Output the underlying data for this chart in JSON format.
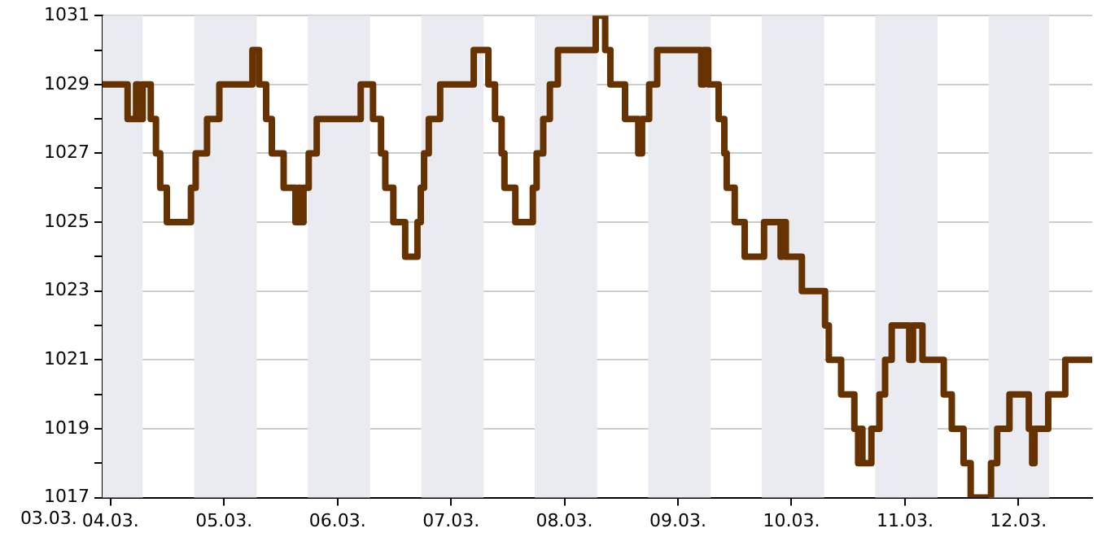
{
  "chart_data": {
    "type": "step",
    "line_style": "solid",
    "marker": "none",
    "legend": false,
    "grid": true,
    "xlim": [
      "--03-03T22:18",
      "--03-12T15:36"
    ],
    "annotations": [
      "03.03."
    ],
    "xticks": [
      {
        "value": "--03-04",
        "label": "04.03."
      },
      {
        "value": "--03-05",
        "label": "05.03."
      },
      {
        "value": "--03-06",
        "label": "06.03."
      },
      {
        "value": "--03-07",
        "label": "07.03."
      },
      {
        "value": "--03-08",
        "label": "08.03."
      },
      {
        "value": "--03-09",
        "label": "09.03."
      },
      {
        "value": "--03-10",
        "label": "10.03."
      },
      {
        "value": "--03-11",
        "label": "11.03."
      },
      {
        "value": "--03-12",
        "label": "12.03."
      }
    ],
    "ylim": [
      1017,
      1031
    ],
    "yticks": [
      1017,
      {
        "value": 1018,
        "label": null
      },
      1019,
      {
        "value": 1020,
        "label": null
      },
      1021,
      {
        "value": 1022,
        "label": null
      },
      1023,
      {
        "value": 1024,
        "label": null
      },
      1025,
      {
        "value": 1026,
        "label": null
      },
      1027,
      {
        "value": 1028,
        "label": null
      },
      1029,
      {
        "value": 1030,
        "label": null
      },
      1031
    ],
    "bands": [
      {
        "axis": "x",
        "from": "--03-03T22:18",
        "to": "--03-04T06:48",
        "color": "#eaebf1"
      },
      {
        "axis": "x",
        "from": "--03-04T17:42",
        "to": "--03-05T06:54",
        "color": "#eaebf1"
      },
      {
        "axis": "x",
        "from": "--03-05T17:42",
        "to": "--03-06T06:54",
        "color": "#eaebf1"
      },
      {
        "axis": "x",
        "from": "--03-06T17:42",
        "to": "--03-07T06:54",
        "color": "#eaebf1"
      },
      {
        "axis": "x",
        "from": "--03-07T17:42",
        "to": "--03-08T06:54",
        "color": "#eaebf1"
      },
      {
        "axis": "x",
        "from": "--03-08T17:42",
        "to": "--03-09T06:54",
        "color": "#eaebf1"
      },
      {
        "axis": "x",
        "from": "--03-09T17:42",
        "to": "--03-10T06:54",
        "color": "#eaebf1"
      },
      {
        "axis": "x",
        "from": "--03-10T17:42",
        "to": "--03-11T06:54",
        "color": "#eaebf1"
      },
      {
        "axis": "x",
        "from": "--03-11T17:42",
        "to": "--03-12T06:30",
        "color": "#eaebf1"
      }
    ],
    "series": [
      {
        "color": "#663300",
        "x": [
          "--03-03T22:18",
          "--03-04T03:36",
          "--03-04T05:24",
          "--03-04T06:00",
          "--03-04T06:48",
          "--03-04T08:30",
          "--03-04T09:36",
          "--03-04T10:30",
          "--03-04T11:54",
          "--03-04T17:00",
          "--03-04T18:00",
          "--03-04T20:24",
          "--03-04T23:00",
          "--03-05T06:00",
          "--03-05T07:24",
          "--03-05T08:54",
          "--03-05T10:06",
          "--03-05T12:36",
          "--03-05T15:06",
          "--03-05T15:48",
          "--03-05T16:06",
          "--03-05T16:48",
          "--03-05T17:54",
          "--03-05T19:36",
          "--03-06T04:54",
          "--03-06T07:30",
          "--03-06T09:12",
          "--03-06T10:06",
          "--03-06T11:48",
          "--03-06T14:18",
          "--03-06T16:54",
          "--03-06T17:36",
          "--03-06T18:18",
          "--03-06T19:18",
          "--03-06T21:42",
          "--03-07T04:48",
          "--03-07T07:54",
          "--03-07T09:18",
          "--03-07T10:42",
          "--03-07T11:18",
          "--03-07T13:36",
          "--03-07T17:18",
          "--03-07T18:06",
          "--03-07T19:30",
          "--03-07T20:54",
          "--03-07T22:36",
          "--03-08T06:36",
          "--03-08T08:36",
          "--03-08T09:42",
          "--03-08T12:48",
          "--03-08T15:36",
          "--03-08T16:24",
          "--03-08T17:54",
          "--03-08T19:36",
          "--03-09T04:54",
          "--03-09T05:30",
          "--03-09T06:24",
          "--03-09T08:36",
          "--03-09T09:48",
          "--03-09T10:18",
          "--03-09T12:00",
          "--03-09T14:06",
          "--03-09T18:12",
          "--03-09T21:42",
          "--03-09T22:06",
          "--03-09T22:48",
          "--03-10T02:12",
          "--03-10T07:06",
          "--03-10T07:54",
          "--03-10T10:30",
          "--03-10T13:18",
          "--03-10T14:06",
          "--03-10T14:42",
          "--03-10T15:00",
          "--03-10T16:54",
          "--03-10T18:36",
          "--03-10T19:48",
          "--03-10T21:12",
          "--03-11T00:54",
          "--03-11T01:42",
          "--03-11T03:42",
          "--03-11T08:12",
          "--03-11T09:54",
          "--03-11T12:24",
          "--03-11T13:54",
          "--03-11T18:12",
          "--03-11T19:30",
          "--03-11T22:06",
          "--03-12T02:12",
          "--03-12T02:54",
          "--03-12T03:24",
          "--03-12T06:18",
          "--03-12T09:54",
          "--03-12T15:36"
        ],
        "values": [
          1029,
          1028,
          1029,
          1028,
          1029,
          1028,
          1027,
          1026,
          1025,
          1026,
          1027,
          1028,
          1029,
          1030,
          1029,
          1028,
          1027,
          1026,
          1025,
          1026,
          1025,
          1026,
          1027,
          1028,
          1029,
          1028,
          1027,
          1026,
          1025,
          1024,
          1025,
          1026,
          1027,
          1028,
          1029,
          1030,
          1029,
          1028,
          1027,
          1026,
          1025,
          1026,
          1027,
          1028,
          1029,
          1030,
          1031,
          1030,
          1029,
          1028,
          1027,
          1028,
          1029,
          1030,
          1029,
          1030,
          1029,
          1028,
          1027,
          1026,
          1025,
          1024,
          1025,
          1024,
          1025,
          1024,
          1023,
          1022,
          1021,
          1020,
          1019,
          1018,
          1019,
          1018,
          1019,
          1020,
          1021,
          1022,
          1021,
          1022,
          1021,
          1020,
          1019,
          1018,
          1017,
          1018,
          1019,
          1020,
          1019,
          1018,
          1019,
          1020,
          1021,
          1021
        ]
      }
    ]
  }
}
